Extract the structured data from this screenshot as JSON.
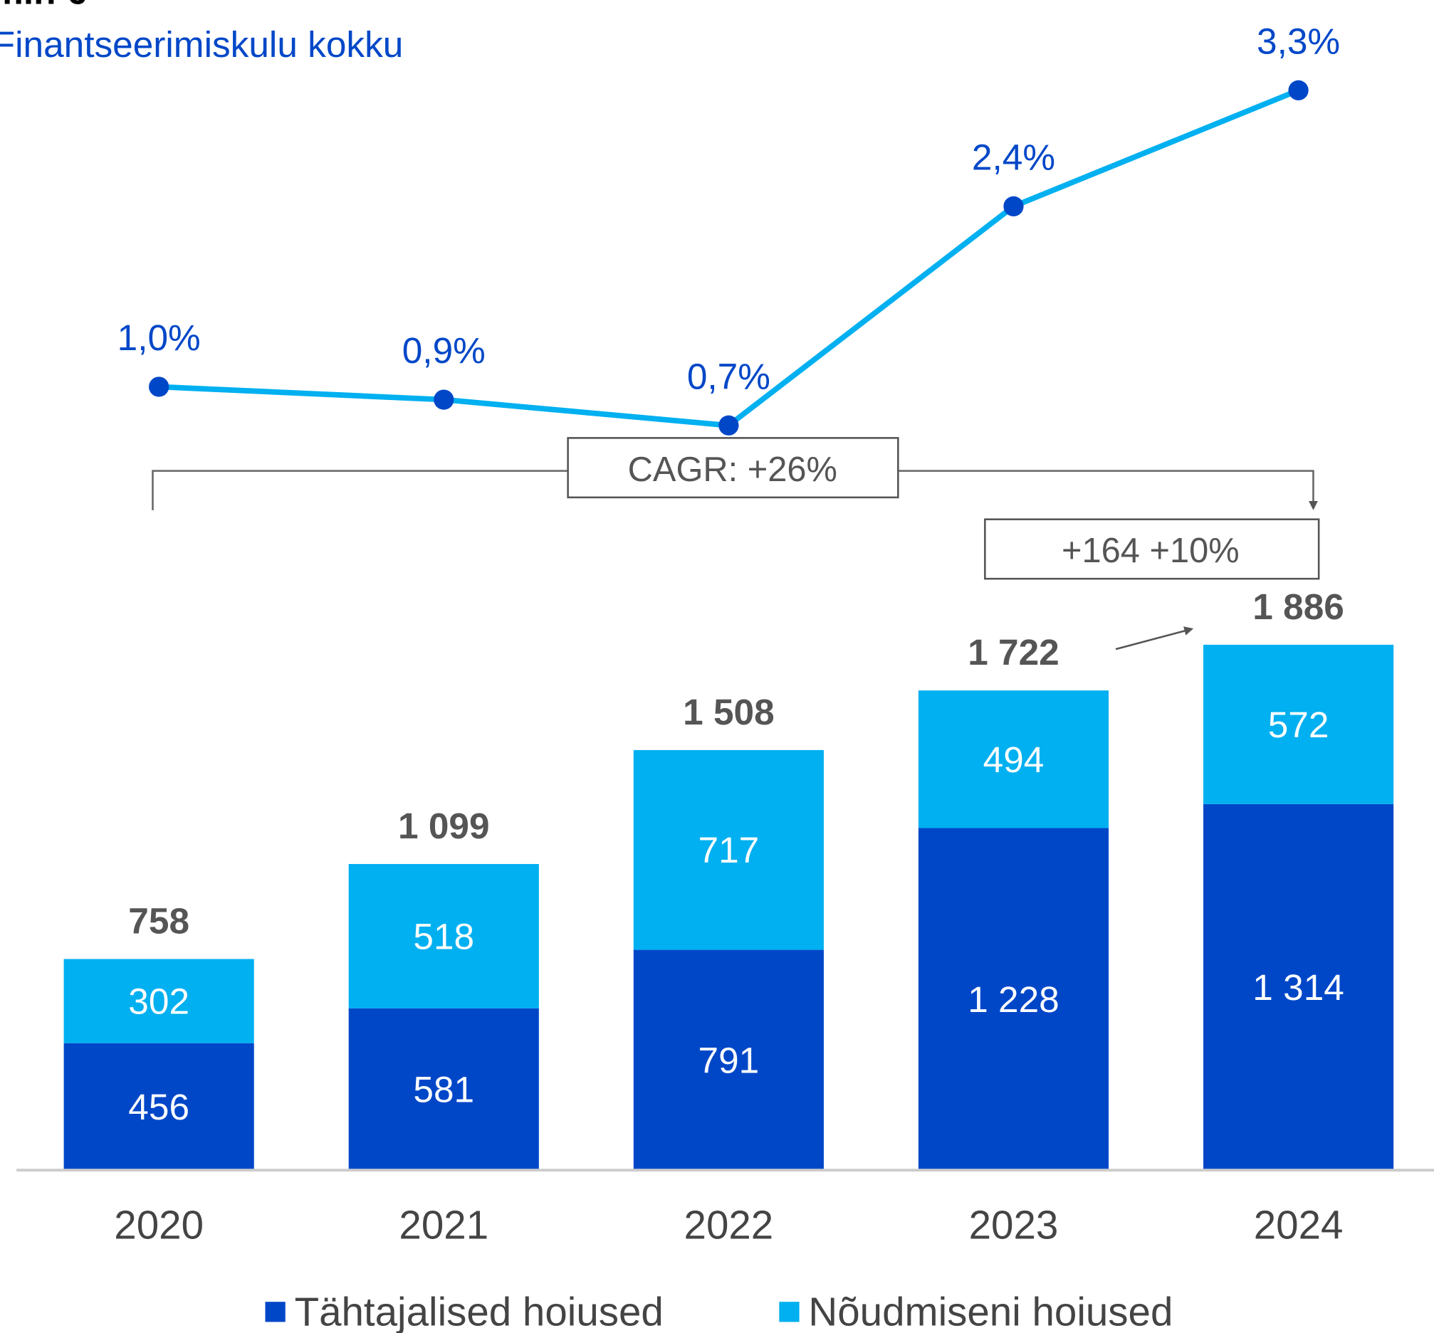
{
  "chart_data": {
    "type": "bar",
    "unit": "mln €",
    "categories": [
      "2020",
      "2021",
      "2022",
      "2023",
      "2024"
    ],
    "series": [
      {
        "name": "Tähtajalised hoiused",
        "color": "#0047c8",
        "values": [
          456,
          581,
          791,
          1228,
          1314
        ],
        "value_labels": [
          "456",
          "581",
          "791",
          "1 228",
          "1 314"
        ]
      },
      {
        "name": "Nõudmiseni hoiused",
        "color": "#00b0f0",
        "values": [
          302,
          518,
          717,
          494,
          572
        ],
        "value_labels": [
          "302",
          "518",
          "717",
          "494",
          "572"
        ]
      },
      {
        "name": "Finantseerimiskulu kokku",
        "type": "line",
        "axis": "y2",
        "color": "#00b0f0",
        "marker_color": "#0047c8",
        "values": [
          1.0,
          0.9,
          0.7,
          2.4,
          3.3
        ],
        "value_labels": [
          "1,0%",
          "0,9%",
          "0,7%",
          "2,4%",
          "3,3%"
        ]
      }
    ],
    "totals": {
      "values": [
        758,
        1099,
        1508,
        1722,
        1886
      ],
      "value_labels": [
        "758",
        "1 099",
        "1 508",
        "1 722",
        "1 886"
      ]
    },
    "annotations": [
      "CAGR:  +26%",
      "+164 +10%"
    ],
    "ylim": [
      0,
      4200
    ],
    "y2lim": [
      0,
      4
    ]
  }
}
